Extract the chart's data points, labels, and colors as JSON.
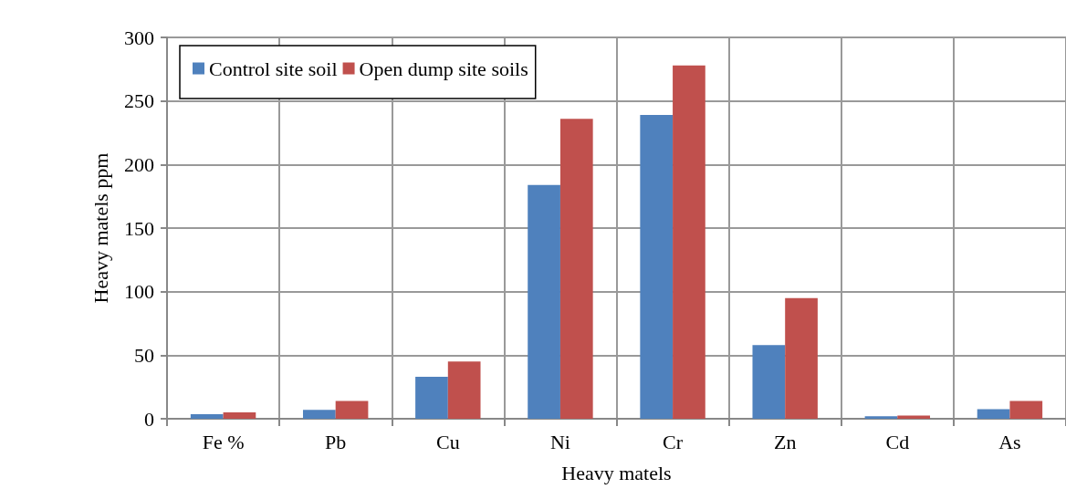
{
  "chart_data": {
    "type": "bar",
    "xlabel": "Heavy matels",
    "ylabel": "Heavy matels ppm",
    "categories": [
      "Fe %",
      "Pb",
      "Cu",
      "Ni",
      "Cr",
      "Zn",
      "Cd",
      "As"
    ],
    "series": [
      {
        "name": "Control site soil",
        "color": "#4f81bd",
        "values": [
          3.5,
          7,
          33,
          184,
          239,
          58,
          2,
          7.5
        ]
      },
      {
        "name": "Open dump site soils",
        "color": "#c0504d",
        "values": [
          5,
          14,
          45,
          236,
          278,
          95,
          2.5,
          14
        ]
      }
    ],
    "ylim": [
      0,
      300
    ],
    "yticks": [
      0,
      50,
      100,
      150,
      200,
      250,
      300
    ],
    "grid": true,
    "legend": "top left"
  }
}
